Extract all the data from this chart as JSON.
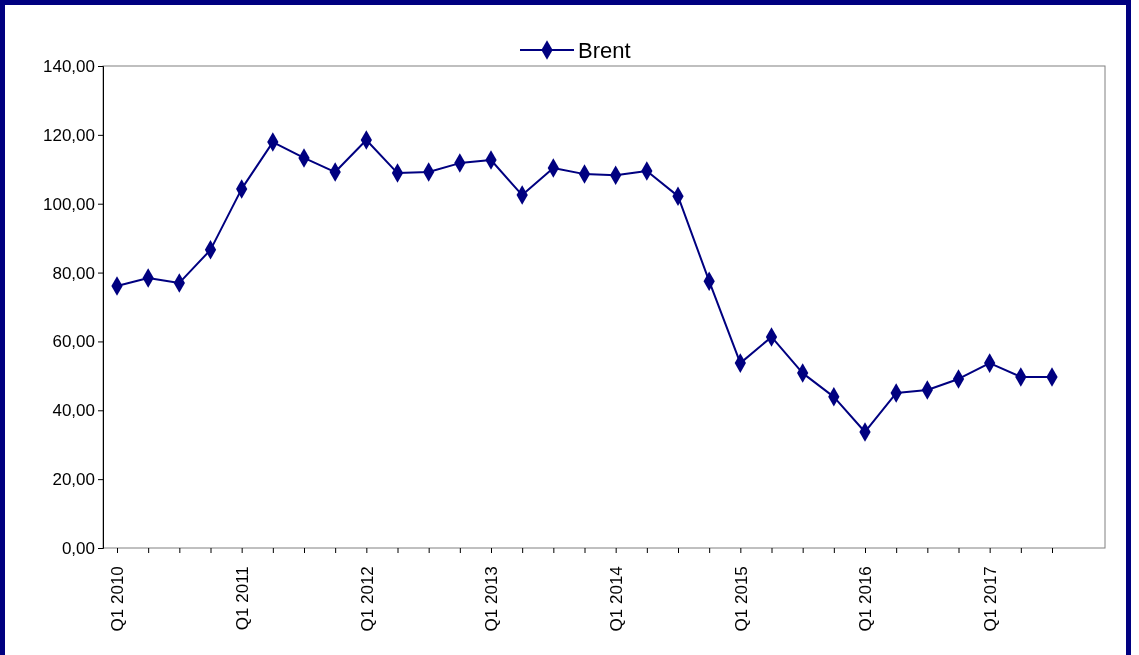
{
  "chart_data": {
    "type": "line",
    "categories": [
      "Q1 2010",
      null,
      null,
      null,
      "Q1 2011",
      null,
      null,
      null,
      "Q1 2012",
      null,
      null,
      null,
      "Q1 2013",
      null,
      null,
      null,
      "Q1 2014",
      null,
      null,
      null,
      "Q1 2015",
      null,
      null,
      null,
      "Q1 2016",
      null,
      null,
      null,
      "Q1 2017",
      null,
      null
    ],
    "series": [
      {
        "name": "Brent",
        "color": "#000080",
        "values": [
          76.1,
          78.4,
          77.0,
          86.6,
          104.3,
          117.9,
          113.3,
          109.2,
          118.5,
          108.9,
          109.2,
          111.8,
          112.7,
          102.5,
          110.4,
          108.6,
          108.3,
          109.5,
          102.2,
          77.5,
          53.7,
          61.3,
          50.8,
          43.9,
          33.7,
          45.0,
          45.9,
          49.1,
          53.7,
          49.7,
          49.7
        ]
      }
    ],
    "ylim": [
      0,
      140
    ],
    "yticks": [
      {
        "value": 0,
        "label": "0,00"
      },
      {
        "value": 20,
        "label": "20,00"
      },
      {
        "value": 40,
        "label": "40,00"
      },
      {
        "value": 60,
        "label": "60,00"
      },
      {
        "value": 80,
        "label": "80,00"
      },
      {
        "value": 100,
        "label": "100,00"
      },
      {
        "value": 120,
        "label": "120,00"
      },
      {
        "value": 140,
        "label": "140,00"
      }
    ],
    "marker": "diamond",
    "line_style": "solid",
    "legend": "top",
    "grid": false
  }
}
